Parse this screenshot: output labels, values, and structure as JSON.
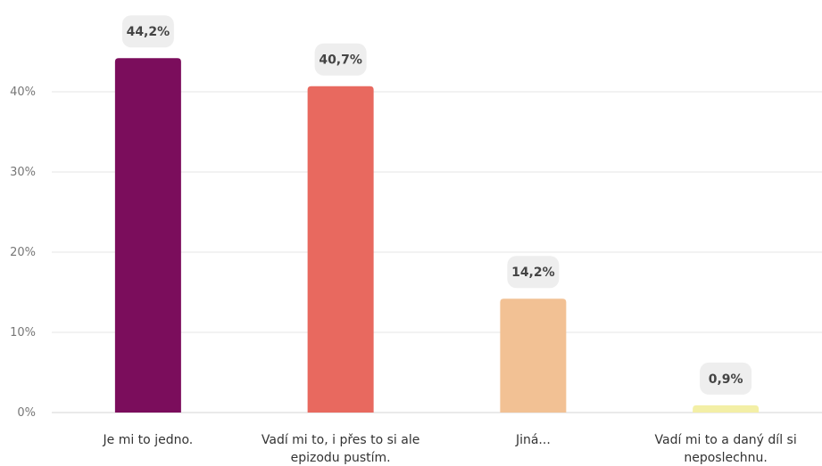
{
  "chart_data": {
    "type": "bar",
    "categories": [
      [
        "Je mi to jedno."
      ],
      [
        "Vadí mi to, i přes to si ale",
        "epizodu pustím."
      ],
      [
        "Jiná..."
      ],
      [
        "Vadí mi to a daný díl si",
        "neposlechnu."
      ]
    ],
    "values": [
      44.2,
      40.7,
      14.2,
      0.9
    ],
    "data_labels": [
      "44,2%",
      "40,7%",
      "14,2%",
      "0,9%"
    ],
    "colors": [
      "#7b0d5c",
      "#e8695f",
      "#f2c194",
      "#f3efa6"
    ],
    "yticks": [
      0,
      10,
      20,
      30,
      40
    ],
    "ytick_labels": [
      "0%",
      "10%",
      "20%",
      "30%",
      "40%"
    ],
    "ylim": [
      0,
      50
    ],
    "grid": true,
    "title": "",
    "xlabel": "",
    "ylabel": ""
  }
}
